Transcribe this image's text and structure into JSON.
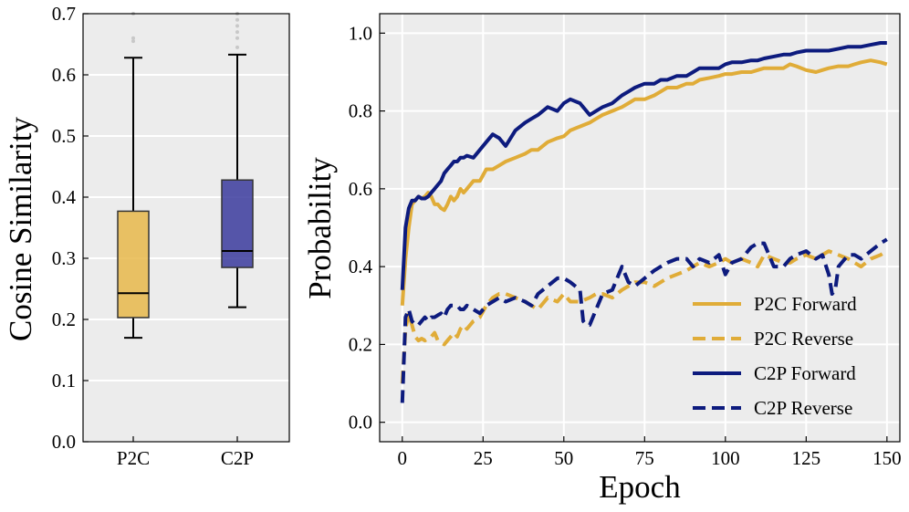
{
  "chart_data": [
    {
      "type": "box",
      "ylabel": "Cosine Similarity",
      "xlabel": "",
      "ylim": [
        0.0,
        0.7
      ],
      "yticks": [
        "0.0",
        "0.1",
        "0.2",
        "0.3",
        "0.4",
        "0.5",
        "0.6",
        "0.7"
      ],
      "grid": true,
      "boxes": [
        {
          "name": "P2C",
          "color": "#e8b84b",
          "whisker_low": 0.17,
          "q1": 0.203,
          "median": 0.243,
          "q3": 0.377,
          "whisker_high": 0.628,
          "outliers": [
            0.655,
            0.66,
            0.7
          ]
        },
        {
          "name": "C2P",
          "color": "#3b3b9e",
          "whisker_low": 0.22,
          "q1": 0.285,
          "median": 0.312,
          "q3": 0.428,
          "whisker_high": 0.633,
          "outliers": [
            0.645,
            0.66,
            0.67,
            0.68,
            0.69,
            0.7
          ]
        }
      ]
    },
    {
      "type": "line",
      "xlabel": "Epoch",
      "ylabel": "Probability",
      "xlim": [
        -7,
        154
      ],
      "ylim": [
        -0.05,
        1.05
      ],
      "xticks": [
        "0",
        "25",
        "50",
        "75",
        "100",
        "125",
        "150"
      ],
      "yticks": [
        "0.0",
        "0.2",
        "0.4",
        "0.6",
        "0.8",
        "1.0"
      ],
      "grid": true,
      "legend_position": "lower-right",
      "series": [
        {
          "name": "P2C Forward",
          "color": "#e0ac38",
          "dash": "solid",
          "x": [
            0,
            1,
            2,
            3,
            4,
            5,
            6,
            7,
            8,
            9,
            10,
            11,
            12,
            13,
            14,
            15,
            16,
            17,
            18,
            19,
            20,
            22,
            24,
            26,
            28,
            30,
            32,
            35,
            38,
            40,
            42,
            45,
            48,
            50,
            52,
            55,
            58,
            60,
            62,
            65,
            68,
            70,
            72,
            75,
            78,
            80,
            82,
            85,
            88,
            90,
            92,
            95,
            98,
            100,
            102,
            105,
            108,
            110,
            112,
            115,
            118,
            120,
            122,
            125,
            128,
            130,
            132,
            135,
            138,
            140,
            142,
            145,
            148,
            150
          ],
          "y": [
            0.3,
            0.42,
            0.5,
            0.56,
            0.57,
            0.58,
            0.575,
            0.58,
            0.59,
            0.58,
            0.56,
            0.56,
            0.55,
            0.545,
            0.56,
            0.58,
            0.57,
            0.58,
            0.6,
            0.59,
            0.6,
            0.62,
            0.62,
            0.65,
            0.65,
            0.66,
            0.67,
            0.68,
            0.69,
            0.7,
            0.7,
            0.72,
            0.73,
            0.735,
            0.75,
            0.76,
            0.77,
            0.78,
            0.79,
            0.8,
            0.81,
            0.82,
            0.83,
            0.83,
            0.84,
            0.85,
            0.86,
            0.86,
            0.87,
            0.87,
            0.88,
            0.885,
            0.89,
            0.895,
            0.895,
            0.9,
            0.9,
            0.905,
            0.91,
            0.91,
            0.91,
            0.92,
            0.915,
            0.905,
            0.9,
            0.905,
            0.91,
            0.915,
            0.915,
            0.92,
            0.925,
            0.93,
            0.925,
            0.92
          ]
        },
        {
          "name": "P2C Reverse",
          "color": "#e0ac38",
          "dash": "dash",
          "x": [
            0,
            1,
            2,
            3,
            4,
            5,
            6,
            7,
            8,
            9,
            10,
            11,
            12,
            13,
            14,
            15,
            16,
            17,
            18,
            19,
            20,
            22,
            24,
            26,
            28,
            30,
            32,
            35,
            38,
            40,
            42,
            45,
            48,
            50,
            52,
            55,
            58,
            60,
            62,
            65,
            68,
            70,
            72,
            75,
            78,
            80,
            82,
            85,
            88,
            90,
            92,
            95,
            98,
            100,
            102,
            105,
            108,
            110,
            112,
            115,
            118,
            120,
            122,
            125,
            128,
            130,
            132,
            135,
            138,
            140,
            142,
            145,
            148,
            150
          ],
          "y": [
            0.1,
            0.24,
            0.28,
            0.25,
            0.22,
            0.21,
            0.215,
            0.21,
            0.215,
            0.22,
            0.23,
            0.21,
            0.205,
            0.2,
            0.21,
            0.22,
            0.23,
            0.22,
            0.24,
            0.25,
            0.24,
            0.26,
            0.27,
            0.3,
            0.32,
            0.33,
            0.33,
            0.32,
            0.31,
            0.3,
            0.29,
            0.32,
            0.31,
            0.33,
            0.31,
            0.31,
            0.32,
            0.33,
            0.33,
            0.32,
            0.34,
            0.35,
            0.36,
            0.36,
            0.35,
            0.36,
            0.37,
            0.38,
            0.39,
            0.4,
            0.41,
            0.4,
            0.41,
            0.42,
            0.41,
            0.42,
            0.41,
            0.4,
            0.43,
            0.42,
            0.41,
            0.41,
            0.42,
            0.43,
            0.42,
            0.43,
            0.44,
            0.43,
            0.42,
            0.41,
            0.4,
            0.42,
            0.43,
            0.44
          ]
        },
        {
          "name": "C2P Forward",
          "color": "#0d1b7e",
          "dash": "solid",
          "x": [
            0,
            1,
            2,
            3,
            4,
            5,
            6,
            7,
            8,
            9,
            10,
            11,
            12,
            13,
            14,
            15,
            16,
            17,
            18,
            19,
            20,
            22,
            24,
            26,
            28,
            30,
            32,
            35,
            38,
            40,
            42,
            45,
            48,
            50,
            52,
            55,
            58,
            60,
            62,
            65,
            68,
            70,
            72,
            75,
            78,
            80,
            82,
            85,
            88,
            90,
            92,
            95,
            98,
            100,
            102,
            105,
            108,
            110,
            112,
            115,
            118,
            120,
            122,
            125,
            128,
            130,
            132,
            135,
            138,
            140,
            142,
            145,
            148,
            150
          ],
          "y": [
            0.34,
            0.5,
            0.55,
            0.57,
            0.57,
            0.58,
            0.575,
            0.575,
            0.58,
            0.59,
            0.6,
            0.61,
            0.62,
            0.64,
            0.65,
            0.66,
            0.67,
            0.67,
            0.68,
            0.68,
            0.685,
            0.68,
            0.7,
            0.72,
            0.74,
            0.73,
            0.71,
            0.75,
            0.77,
            0.78,
            0.79,
            0.81,
            0.8,
            0.82,
            0.83,
            0.82,
            0.79,
            0.8,
            0.81,
            0.82,
            0.84,
            0.85,
            0.86,
            0.87,
            0.87,
            0.88,
            0.88,
            0.89,
            0.89,
            0.9,
            0.91,
            0.91,
            0.91,
            0.92,
            0.925,
            0.925,
            0.93,
            0.93,
            0.935,
            0.94,
            0.945,
            0.945,
            0.95,
            0.955,
            0.955,
            0.955,
            0.955,
            0.96,
            0.965,
            0.965,
            0.965,
            0.97,
            0.975,
            0.975
          ]
        },
        {
          "name": "C2P Reverse",
          "color": "#0d1b7e",
          "dash": "dash",
          "x": [
            0,
            1,
            2,
            3,
            4,
            5,
            6,
            7,
            8,
            9,
            10,
            11,
            12,
            13,
            14,
            15,
            16,
            17,
            18,
            19,
            20,
            22,
            24,
            26,
            28,
            30,
            32,
            35,
            38,
            40,
            42,
            45,
            48,
            50,
            52,
            55,
            56,
            57,
            58,
            60,
            62,
            65,
            68,
            70,
            72,
            75,
            78,
            80,
            82,
            85,
            88,
            90,
            92,
            95,
            98,
            100,
            102,
            105,
            108,
            110,
            112,
            115,
            118,
            120,
            122,
            125,
            128,
            130,
            132,
            133,
            134,
            135,
            138,
            140,
            142,
            145,
            148,
            150
          ],
          "y": [
            0.05,
            0.27,
            0.29,
            0.26,
            0.25,
            0.25,
            0.26,
            0.27,
            0.26,
            0.27,
            0.27,
            0.275,
            0.28,
            0.27,
            0.29,
            0.3,
            0.3,
            0.3,
            0.29,
            0.29,
            0.3,
            0.29,
            0.28,
            0.3,
            0.31,
            0.32,
            0.31,
            0.32,
            0.31,
            0.3,
            0.33,
            0.35,
            0.37,
            0.37,
            0.36,
            0.34,
            0.26,
            0.25,
            0.25,
            0.29,
            0.33,
            0.34,
            0.4,
            0.36,
            0.35,
            0.37,
            0.39,
            0.4,
            0.41,
            0.42,
            0.42,
            0.4,
            0.42,
            0.41,
            0.43,
            0.38,
            0.41,
            0.42,
            0.45,
            0.46,
            0.46,
            0.4,
            0.4,
            0.42,
            0.43,
            0.44,
            0.42,
            0.43,
            0.38,
            0.33,
            0.34,
            0.4,
            0.43,
            0.43,
            0.42,
            0.44,
            0.46,
            0.47
          ]
        }
      ]
    }
  ]
}
